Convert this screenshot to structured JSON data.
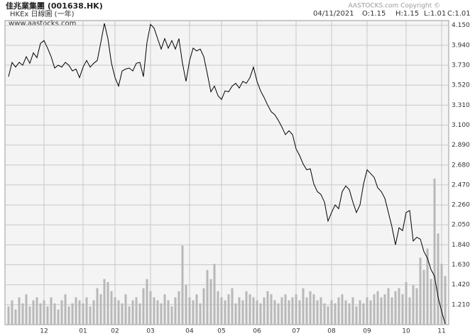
{
  "chart_data": {
    "type": "line",
    "title": "佳兆業集團 (001638.HK)",
    "subtitle": "HKEx 日線圖 (一年)",
    "source": "www.aastocks.com",
    "copyright": "AASTOCKS.com Copyright ©",
    "header": [
      "04/11/2021",
      "O:1.15",
      "H:1.15",
      "L:1.01",
      "C:1.01"
    ],
    "x": [
      0,
      1,
      2,
      3,
      4,
      5,
      6,
      7,
      8,
      9,
      10,
      11,
      12,
      13,
      14,
      15,
      16,
      17,
      18,
      19,
      20,
      21,
      22,
      23,
      24,
      25,
      26,
      27,
      28,
      29,
      30,
      31,
      32,
      33,
      34,
      35,
      36,
      37,
      38,
      39,
      40,
      41,
      42,
      43,
      44,
      45,
      46,
      47,
      48,
      49,
      50,
      51,
      52,
      53,
      54,
      55,
      56,
      57,
      58,
      59,
      60,
      61,
      62,
      63,
      64,
      65,
      66,
      67,
      68,
      69,
      70,
      71,
      72,
      73,
      74,
      75,
      76,
      77,
      78,
      79,
      80,
      81,
      82,
      83,
      84,
      85,
      86,
      87,
      88,
      89,
      90,
      91,
      92,
      93,
      94,
      95,
      96,
      97,
      98,
      99,
      100,
      101,
      102,
      103,
      104,
      105,
      106,
      107,
      108,
      109,
      110,
      111,
      112,
      113,
      114,
      115,
      116,
      117,
      118,
      119,
      120,
      121,
      122,
      123
    ],
    "values": [
      3.61,
      3.76,
      3.71,
      3.76,
      3.73,
      3.82,
      3.75,
      3.86,
      3.81,
      3.96,
      3.99,
      3.91,
      3.82,
      3.7,
      3.73,
      3.71,
      3.76,
      3.73,
      3.67,
      3.69,
      3.6,
      3.71,
      3.78,
      3.71,
      3.75,
      3.78,
      3.97,
      4.17,
      4.01,
      3.75,
      3.6,
      3.51,
      3.67,
      3.69,
      3.7,
      3.67,
      3.75,
      3.76,
      3.61,
      3.97,
      4.16,
      4.12,
      4.01,
      3.9,
      4.01,
      3.91,
      3.99,
      3.9,
      4.01,
      3.75,
      3.56,
      3.78,
      3.91,
      3.88,
      3.9,
      3.82,
      3.64,
      3.45,
      3.51,
      3.41,
      3.37,
      3.46,
      3.45,
      3.51,
      3.54,
      3.49,
      3.56,
      3.54,
      3.6,
      3.71,
      3.56,
      3.46,
      3.39,
      3.31,
      3.24,
      3.21,
      3.15,
      3.08,
      3.0,
      3.04,
      3.0,
      2.85,
      2.78,
      2.69,
      2.63,
      2.64,
      2.48,
      2.4,
      2.37,
      2.29,
      2.09,
      2.18,
      2.26,
      2.22,
      2.4,
      2.46,
      2.42,
      2.29,
      2.18,
      2.26,
      2.48,
      2.63,
      2.59,
      2.55,
      2.44,
      2.4,
      2.33,
      2.18,
      2.03,
      1.84,
      2.02,
      1.99,
      2.18,
      2.2,
      1.88,
      1.92,
      1.9,
      1.77,
      1.7,
      1.58,
      1.51,
      1.29,
      1.14,
      1.01
    ],
    "volume": [
      6,
      8,
      5,
      9,
      7,
      10,
      6,
      8,
      9,
      7,
      8,
      6,
      9,
      7,
      5,
      8,
      10,
      6,
      7,
      9,
      8,
      7,
      9,
      6,
      8,
      12,
      10,
      15,
      14,
      11,
      9,
      8,
      7,
      10,
      6,
      8,
      9,
      7,
      12,
      15,
      11,
      9,
      8,
      7,
      10,
      8,
      6,
      9,
      11,
      26,
      13,
      9,
      8,
      10,
      7,
      12,
      18,
      15,
      20,
      11,
      9,
      8,
      10,
      12,
      7,
      9,
      8,
      11,
      10,
      9,
      8,
      7,
      9,
      11,
      10,
      8,
      7,
      9,
      10,
      8,
      9,
      10,
      8,
      12,
      9,
      11,
      10,
      8,
      9,
      7,
      6,
      8,
      7,
      9,
      10,
      8,
      7,
      9,
      6,
      8,
      7,
      9,
      8,
      10,
      11,
      9,
      10,
      12,
      9,
      11,
      12,
      10,
      14,
      9,
      13,
      12,
      22,
      18,
      25,
      15,
      48,
      30,
      20,
      16
    ],
    "color": "#000000",
    "volume_color": "#b8b8b8",
    "xlim": [
      -1,
      124
    ],
    "ylim": [
      1.0,
      4.2
    ],
    "y2lim": [
      0,
      100
    ],
    "xticks": [
      {
        "value": 10,
        "label": "12"
      },
      {
        "value": 21,
        "label": "01"
      },
      {
        "value": 30,
        "label": "02"
      },
      {
        "value": 40,
        "label": "03"
      },
      {
        "value": 51,
        "label": "04"
      },
      {
        "value": 60,
        "label": "05"
      },
      {
        "value": 70,
        "label": "06"
      },
      {
        "value": 81,
        "label": "07"
      },
      {
        "value": 91,
        "label": "08"
      },
      {
        "value": 101,
        "label": "09"
      },
      {
        "value": 112,
        "label": "10"
      },
      {
        "value": 122,
        "label": "11"
      }
    ],
    "yticks": [
      {
        "value": 4.15,
        "label": "4.150"
      },
      {
        "value": 3.94,
        "label": "3.940"
      },
      {
        "value": 3.73,
        "label": "3.730"
      },
      {
        "value": 3.52,
        "label": "3.520"
      },
      {
        "value": 3.31,
        "label": "3.310"
      },
      {
        "value": 3.1,
        "label": "3.100"
      },
      {
        "value": 2.89,
        "label": "2.890"
      },
      {
        "value": 2.68,
        "label": "2.680"
      },
      {
        "value": 2.47,
        "label": "2.470"
      },
      {
        "value": 2.26,
        "label": "2.260"
      },
      {
        "value": 2.05,
        "label": "2.050"
      },
      {
        "value": 1.84,
        "label": "1.840"
      },
      {
        "value": 1.63,
        "label": "1.630"
      },
      {
        "value": 1.42,
        "label": "1.420"
      },
      {
        "value": 1.21,
        "label": "1.210"
      }
    ],
    "grid": true
  }
}
